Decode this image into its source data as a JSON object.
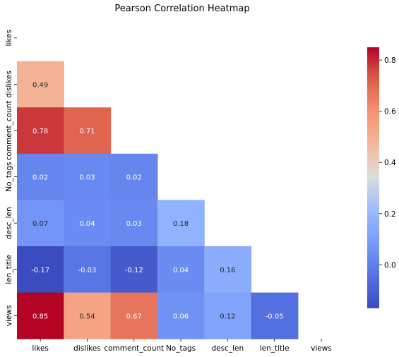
{
  "chart_data": {
    "type": "heatmap",
    "title": "Pearson Correlation Heatmap",
    "variables": [
      "likes",
      "dislikes",
      "comment_count",
      "No_tags",
      "desc_len",
      "len_title",
      "views"
    ],
    "mask": "upper-triangle-including-diagonal",
    "values": [
      [
        null,
        null,
        null,
        null,
        null,
        null,
        null
      ],
      [
        0.49,
        null,
        null,
        null,
        null,
        null,
        null
      ],
      [
        0.78,
        0.71,
        null,
        null,
        null,
        null,
        null
      ],
      [
        0.02,
        0.03,
        0.02,
        null,
        null,
        null,
        null
      ],
      [
        0.07,
        0.04,
        0.03,
        0.18,
        null,
        null,
        null
      ],
      [
        -0.17,
        -0.03,
        -0.12,
        0.04,
        0.16,
        null,
        null
      ],
      [
        0.85,
        0.54,
        0.67,
        0.06,
        0.12,
        -0.05,
        null
      ]
    ],
    "value_labels": [
      [
        null,
        null,
        null,
        null,
        null,
        null,
        null
      ],
      [
        "0.49",
        null,
        null,
        null,
        null,
        null,
        null
      ],
      [
        "0.78",
        "0.71",
        null,
        null,
        null,
        null,
        null
      ],
      [
        "0.02",
        "0.03",
        "0.02",
        null,
        null,
        null,
        null
      ],
      [
        "0.07",
        "0.04",
        "0.03",
        "0.18",
        null,
        null,
        null
      ],
      [
        "-0.17",
        "-0.03",
        "-0.12",
        "0.04",
        "0.16",
        null,
        null
      ],
      [
        "0.85",
        "0.54",
        "0.67",
        "0.06",
        "0.12",
        "-0.05",
        null
      ]
    ],
    "colormap": "coolwarm",
    "colorbar": {
      "vmin": -0.17,
      "vmax": 0.85,
      "ticks": [
        0.0,
        0.2,
        0.4,
        0.6,
        0.8
      ],
      "tick_labels": [
        "0.0",
        "0.2",
        "0.4",
        "0.6",
        "0.8"
      ],
      "position": "right"
    }
  }
}
